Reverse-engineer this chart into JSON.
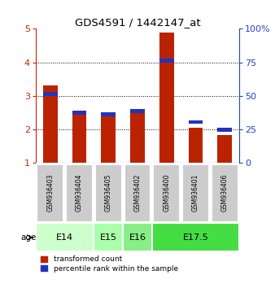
{
  "title": "GDS4591 / 1442147_at",
  "samples": [
    "GSM936403",
    "GSM936404",
    "GSM936405",
    "GSM936402",
    "GSM936400",
    "GSM936401",
    "GSM936406"
  ],
  "red_values": [
    3.3,
    2.55,
    2.45,
    2.6,
    4.88,
    2.05,
    1.82
  ],
  "blue_top_values": [
    3.05,
    2.5,
    2.45,
    2.55,
    4.05,
    2.22,
    2.0
  ],
  "blue_bar_height": 0.12,
  "ylim_left": [
    1,
    5
  ],
  "ylim_right": [
    0,
    100
  ],
  "yticks_left": [
    1,
    2,
    3,
    4,
    5
  ],
  "yticks_right": [
    0,
    25,
    50,
    75,
    100
  ],
  "ytick_labels_right": [
    "0",
    "25",
    "50",
    "75",
    "100%"
  ],
  "age_groups": [
    {
      "label": "E14",
      "start": 0,
      "end": 2,
      "color": "#ccffcc"
    },
    {
      "label": "E15",
      "start": 2,
      "end": 3,
      "color": "#aaffaa"
    },
    {
      "label": "E16",
      "start": 3,
      "end": 4,
      "color": "#88ee88"
    },
    {
      "label": "E17.5",
      "start": 4,
      "end": 7,
      "color": "#44dd44"
    }
  ],
  "red_color": "#bb2200",
  "blue_color": "#2233bb",
  "bar_width": 0.5,
  "bg_color": "#cccccc",
  "legend_red": "transformed count",
  "legend_blue": "percentile rank within the sample",
  "left_color": "#cc2200",
  "right_color": "#2244cc"
}
